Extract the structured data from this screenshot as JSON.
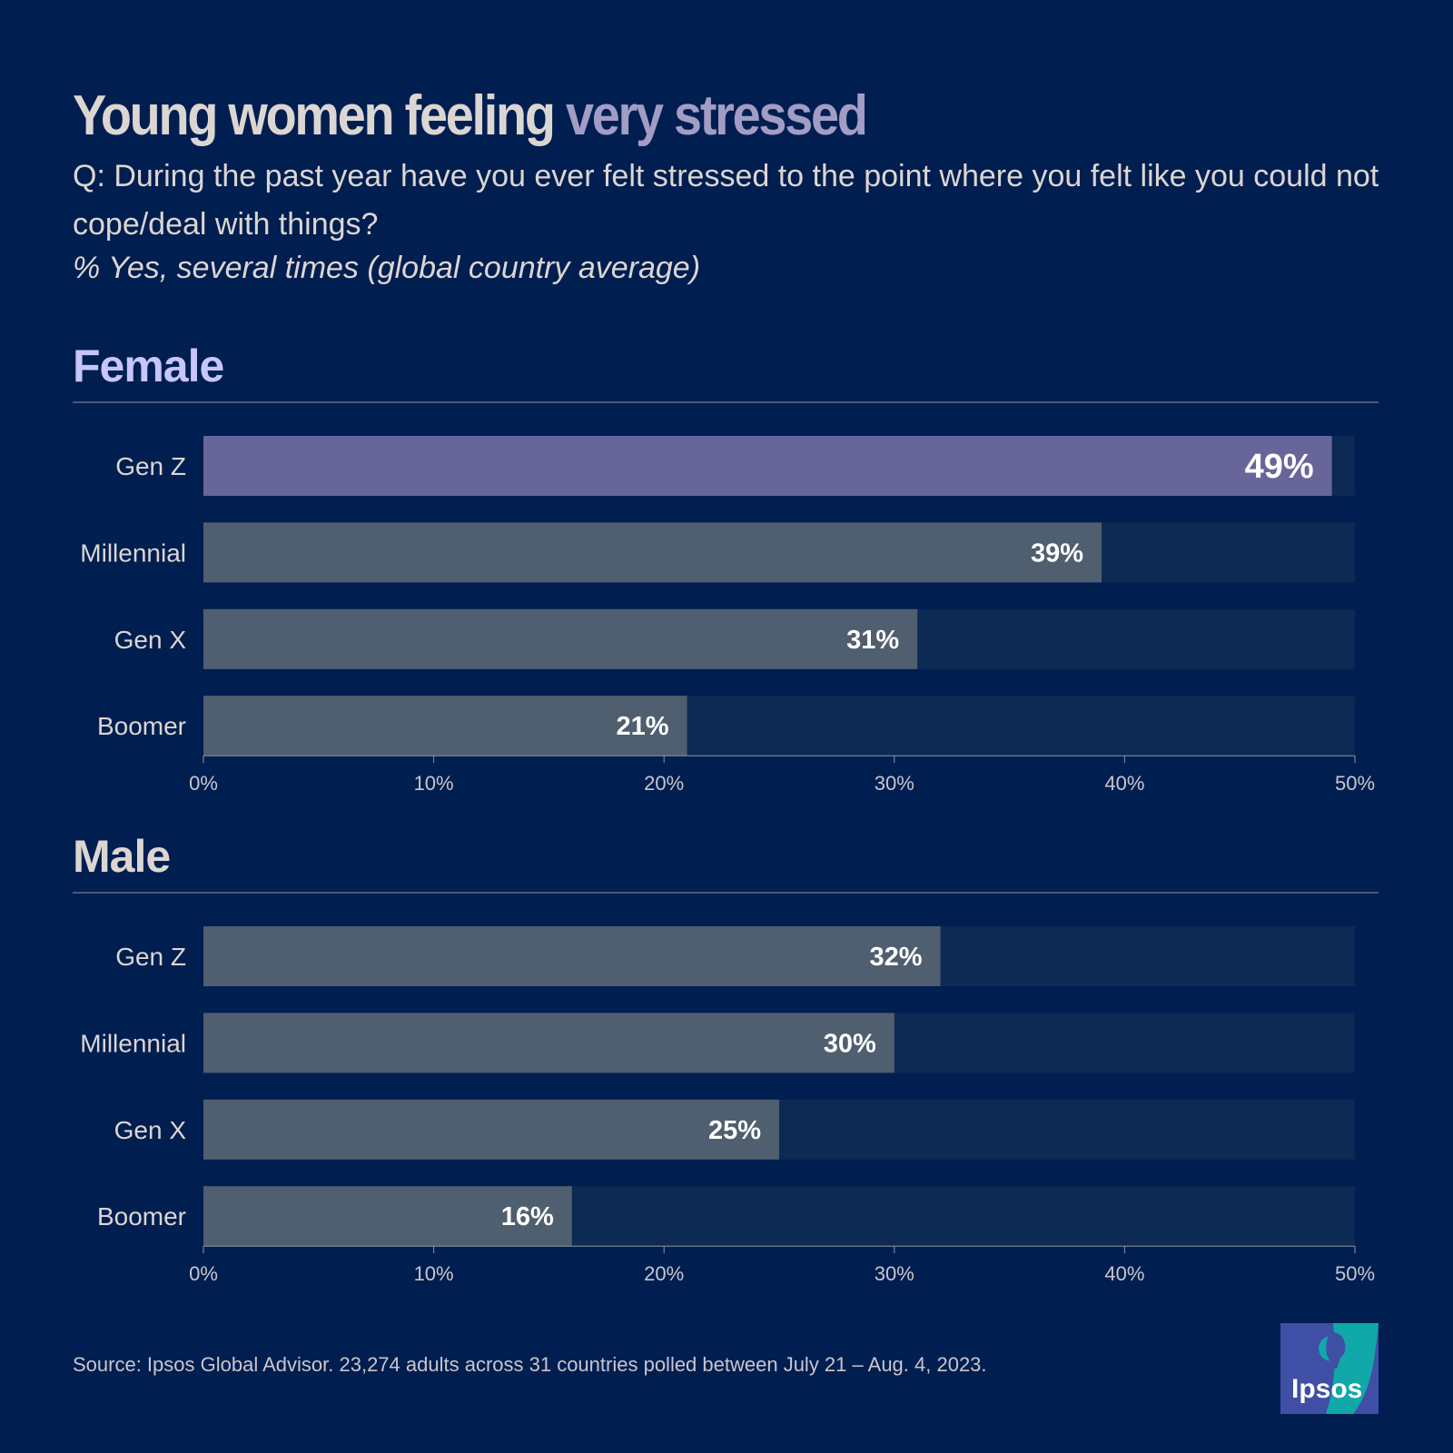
{
  "title": {
    "main": "Young women feeling ",
    "accent": "very stressed"
  },
  "question": "Q: During the past year have you ever felt stressed to the point where you felt like you could not cope/deal with things?",
  "subtitle": "% Yes, several times (global country average)",
  "source": "Source: Ipsos Global Advisor. 23,274 adults across 31 countries polled between July 21 – Aug. 4, 2023.",
  "logo_text": "Ipsos",
  "colors": {
    "background": "#001e50",
    "track": "#0d2a55",
    "bar": "#4f5f70",
    "highlight": "#676599",
    "accent": "#a39dc6",
    "female_heading": "#c7c5fa"
  },
  "chart_data": [
    {
      "type": "bar",
      "orientation": "horizontal",
      "title": "Female",
      "categories": [
        "Gen Z",
        "Millennial",
        "Gen X",
        "Boomer"
      ],
      "values": [
        49,
        39,
        31,
        21
      ],
      "labels": [
        "49%",
        "39%",
        "31%",
        "21%"
      ],
      "highlight": "Gen Z",
      "xlim": [
        0,
        50
      ],
      "xticks": [
        "0%",
        "10%",
        "20%",
        "30%",
        "40%",
        "50%"
      ]
    },
    {
      "type": "bar",
      "orientation": "horizontal",
      "title": "Male",
      "categories": [
        "Gen Z",
        "Millennial",
        "Gen X",
        "Boomer"
      ],
      "values": [
        32,
        30,
        25,
        16
      ],
      "labels": [
        "32%",
        "30%",
        "25%",
        "16%"
      ],
      "xlim": [
        0,
        50
      ],
      "xticks": [
        "0%",
        "10%",
        "20%",
        "30%",
        "40%",
        "50%"
      ]
    }
  ]
}
